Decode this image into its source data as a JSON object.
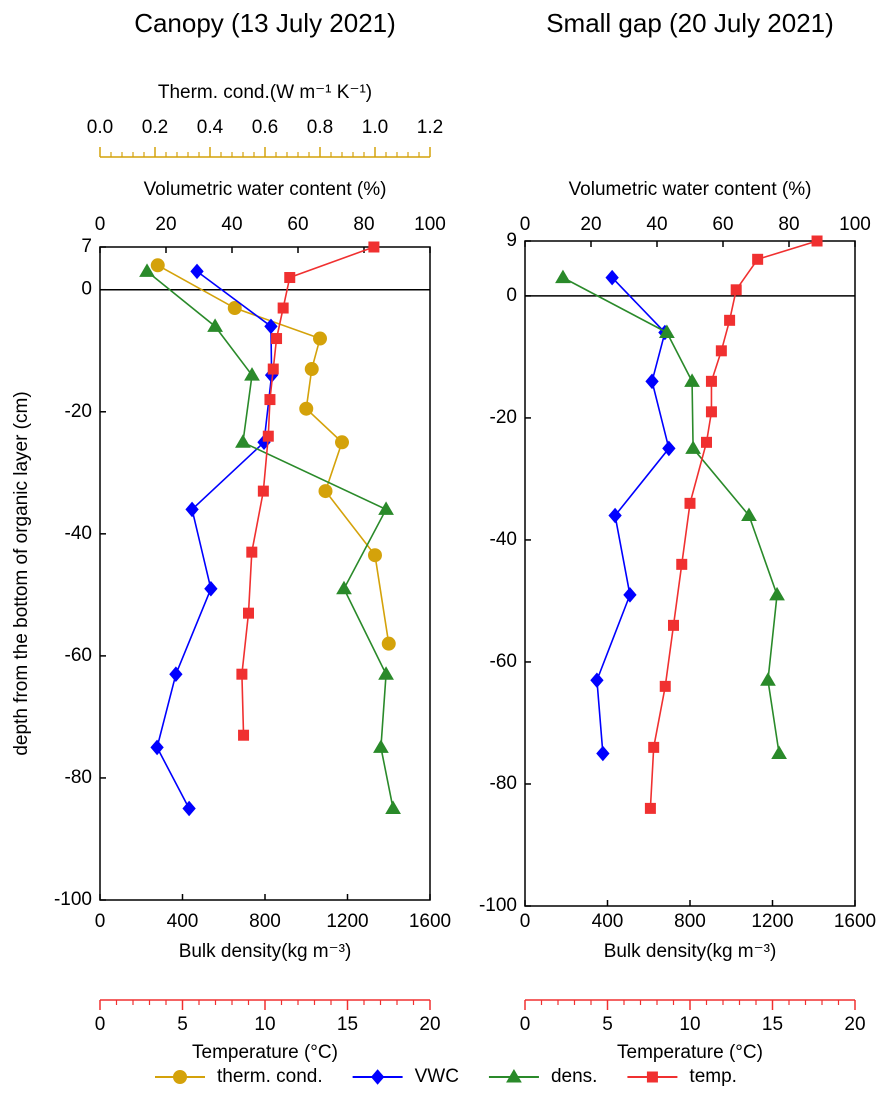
{
  "chart_data": [
    {
      "type": "line",
      "title": "Canopy (13 July 2021)",
      "ylabel": "depth from the bottom of organic layer (cm)",
      "ylim": [
        -100,
        7
      ],
      "yticks": [
        7,
        0,
        -20,
        -40,
        -60,
        -80,
        -100
      ],
      "zero_line": true,
      "x_axes": {
        "tc": {
          "label": "Therm. cond.(W m⁻¹ K⁻¹)",
          "color": "#d4a20a",
          "position": "top-outer",
          "xlim": [
            0,
            1.2
          ],
          "xticks": [
            {
              "value": 0,
              "label": "0.0"
            },
            0.2,
            0.4,
            0.6,
            0.8,
            {
              "value": 1,
              "label": "1.0"
            },
            1.2
          ],
          "minor_ticks": [
            0.04,
            0.08,
            0.12,
            0.16,
            0.24,
            0.28,
            0.32,
            0.36,
            0.44,
            0.48,
            0.52,
            0.56,
            0.64,
            0.68,
            0.72,
            0.76,
            0.84,
            0.88,
            0.92,
            0.96,
            1.04,
            1.08,
            1.12,
            1.16
          ]
        },
        "vwc": {
          "label": "Volumetric water content (%)",
          "color": "#0000ff",
          "position": "top",
          "xlim": [
            0,
            100
          ],
          "xticks": [
            0,
            20,
            40,
            60,
            80,
            100
          ]
        },
        "dens": {
          "label": "Bulk density(kg m⁻³)",
          "color": "#2a8a2a",
          "position": "bottom",
          "xlim": [
            0,
            1600
          ],
          "xticks": [
            0,
            400,
            800,
            1200,
            1600
          ]
        },
        "temp": {
          "label": "Temperature (°C)",
          "color": "#f03030",
          "position": "bottom-outer",
          "xlim": [
            0,
            20
          ],
          "xticks": [
            0,
            5,
            10,
            15,
            20
          ],
          "minor_ticks": [
            1,
            2,
            3,
            4,
            6,
            7,
            8,
            9,
            11,
            12,
            13,
            14,
            16,
            17,
            18,
            19
          ]
        }
      },
      "series": [
        {
          "name": "therm. cond.",
          "axis": "tc",
          "color": "#d4a20a",
          "marker": "circle",
          "x": [
            0.21,
            0.49,
            0.8,
            0.77,
            0.75,
            0.88,
            0.82,
            1.0,
            1.05
          ],
          "y": [
            4,
            -3,
            -8,
            -13,
            -19.5,
            -25,
            -33,
            -43.5,
            -58
          ]
        },
        {
          "name": "VWC",
          "axis": "vwc",
          "color": "#0000ff",
          "marker": "diamond",
          "x": [
            29.4,
            51.8,
            52,
            49.7,
            27.9,
            33.6,
            23,
            17.3,
            27
          ],
          "y": [
            3,
            -6,
            -14,
            -25,
            -36,
            -49,
            -63,
            -75,
            -85
          ]
        },
        {
          "name": "dens.",
          "axis": "dens",
          "color": "#2a8a2a",
          "marker": "triangle",
          "x": [
            228,
            558,
            737,
            693,
            1387,
            1183,
            1387,
            1362,
            1421
          ],
          "y": [
            3,
            -6,
            -14,
            -25,
            -36,
            -49,
            -63,
            -75,
            -85
          ]
        },
        {
          "name": "temp.",
          "axis": "temp",
          "color": "#f03030",
          "marker": "square",
          "x": [
            16.6,
            11.5,
            11.1,
            10.7,
            10.5,
            10.3,
            10.2,
            9.9,
            9.2,
            9.0,
            8.6,
            8.7
          ],
          "y": [
            7,
            2,
            -3,
            -8,
            -13,
            -18,
            -24,
            -33,
            -43,
            -53,
            -63,
            -73
          ]
        }
      ]
    },
    {
      "type": "line",
      "title": "Small gap (20 July 2021)",
      "ylim": [
        -100,
        9
      ],
      "yticks": [
        9,
        0,
        -20,
        -40,
        -60,
        -80,
        -100
      ],
      "zero_line": true,
      "x_axes": {
        "vwc": {
          "label": "Volumetric water content (%)",
          "color": "#0000ff",
          "position": "top",
          "xlim": [
            0,
            100
          ],
          "xticks": [
            0,
            20,
            40,
            60,
            80,
            100
          ]
        },
        "dens": {
          "label": "Bulk density(kg m⁻³)",
          "color": "#2a8a2a",
          "position": "bottom",
          "xlim": [
            0,
            1600
          ],
          "xticks": [
            0,
            400,
            800,
            1200,
            1600
          ]
        },
        "temp": {
          "label": "Temperature (°C)",
          "color": "#f03030",
          "position": "bottom-outer",
          "xlim": [
            0,
            20
          ],
          "xticks": [
            0,
            5,
            10,
            15,
            20
          ],
          "minor_ticks": [
            1,
            2,
            3,
            4,
            6,
            7,
            8,
            9,
            11,
            12,
            13,
            14,
            16,
            17,
            18,
            19
          ]
        }
      },
      "series": [
        {
          "axis": "vwc",
          "color": "#0000ff",
          "marker": "diamond",
          "x": [
            26.4,
            42.4,
            38.5,
            43.6,
            27.3,
            31.8,
            21.8,
            23.6
          ],
          "y": [
            3,
            -6,
            -14,
            -25,
            -36,
            -49,
            -63,
            -75
          ]
        },
        {
          "axis": "dens",
          "color": "#2a8a2a",
          "marker": "triangle",
          "x": [
            184,
            688,
            810,
            815,
            1086,
            1222,
            1178,
            1232
          ],
          "y": [
            3,
            -6,
            -14,
            -25,
            -36,
            -49,
            -63,
            -75
          ]
        },
        {
          "axis": "temp",
          "color": "#f03030",
          "marker": "square",
          "x": [
            17.7,
            14.1,
            12.8,
            12.4,
            11.9,
            11.3,
            11.3,
            11.0,
            10.0,
            9.5,
            9.0,
            8.5,
            7.8,
            7.6
          ],
          "y": [
            9,
            6,
            1,
            -4,
            -9,
            -14,
            -19,
            -24,
            -34,
            -44,
            -54,
            -64,
            -74,
            -84
          ]
        }
      ]
    }
  ]
}
